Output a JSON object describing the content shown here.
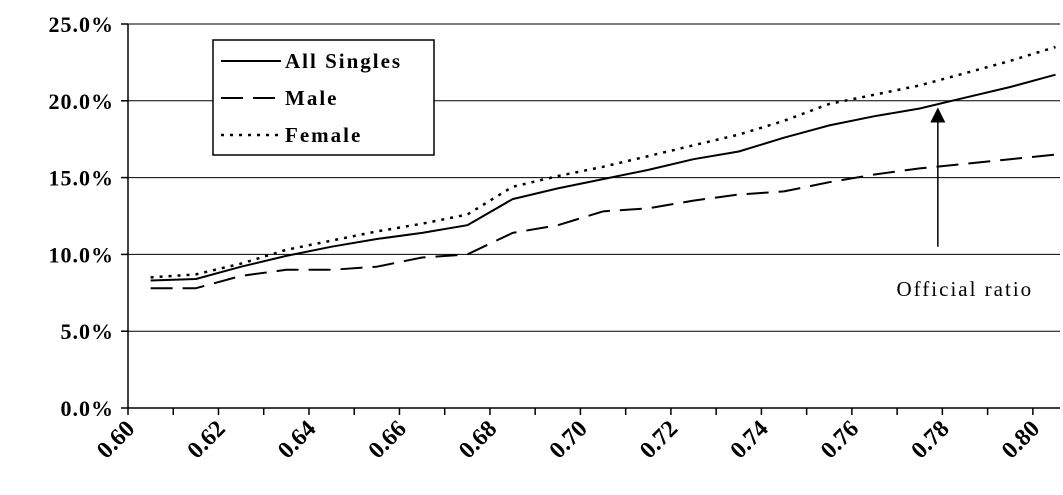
{
  "chart_data": {
    "type": "line",
    "x": [
      0.605,
      0.615,
      0.625,
      0.635,
      0.645,
      0.655,
      0.665,
      0.675,
      0.685,
      0.695,
      0.705,
      0.715,
      0.725,
      0.735,
      0.745,
      0.755,
      0.765,
      0.775,
      0.785,
      0.795,
      0.805
    ],
    "series": [
      {
        "name": "All Singles",
        "style": "solid",
        "values": [
          8.3,
          8.4,
          9.2,
          9.9,
          10.5,
          11.0,
          11.4,
          11.9,
          13.6,
          14.3,
          14.9,
          15.5,
          16.2,
          16.7,
          17.6,
          18.4,
          19.0,
          19.5,
          20.2,
          20.9,
          21.7
        ]
      },
      {
        "name": "Male",
        "style": "dashed",
        "values": [
          7.8,
          7.8,
          8.6,
          9.0,
          9.0,
          9.2,
          9.8,
          10.0,
          11.4,
          11.9,
          12.8,
          13.0,
          13.5,
          13.9,
          14.1,
          14.7,
          15.2,
          15.6,
          15.9,
          16.2,
          16.5
        ]
      },
      {
        "name": "Female",
        "style": "dotted",
        "values": [
          8.5,
          8.7,
          9.4,
          10.3,
          10.9,
          11.5,
          12.0,
          12.6,
          14.4,
          15.1,
          15.7,
          16.4,
          17.1,
          17.8,
          18.7,
          19.8,
          20.4,
          21.0,
          21.8,
          22.6,
          23.5
        ]
      }
    ],
    "xlim": [
      0.6,
      0.806
    ],
    "ylim": [
      0,
      25
    ],
    "x_ticks": [
      "0.60",
      "0.62",
      "0.64",
      "0.66",
      "0.68",
      "0.70",
      "0.72",
      "0.74",
      "0.76",
      "0.78",
      "0.80"
    ],
    "x_tick_values": [
      0.6,
      0.62,
      0.64,
      0.66,
      0.68,
      0.7,
      0.72,
      0.74,
      0.76,
      0.78,
      0.8
    ],
    "y_ticks": [
      "0.0%",
      "5.0%",
      "10.0%",
      "15.0%",
      "20.0%",
      "25.0%"
    ],
    "y_tick_values": [
      0,
      5,
      10,
      15,
      20,
      25
    ],
    "grid": "horizontal",
    "legend_position": "top-left",
    "annotations": [
      {
        "text": "Official ratio",
        "arrow_x": 0.779,
        "arrow_from_y": 10.5,
        "arrow_to_y": 19.6,
        "label_y": 7.3
      }
    ]
  }
}
